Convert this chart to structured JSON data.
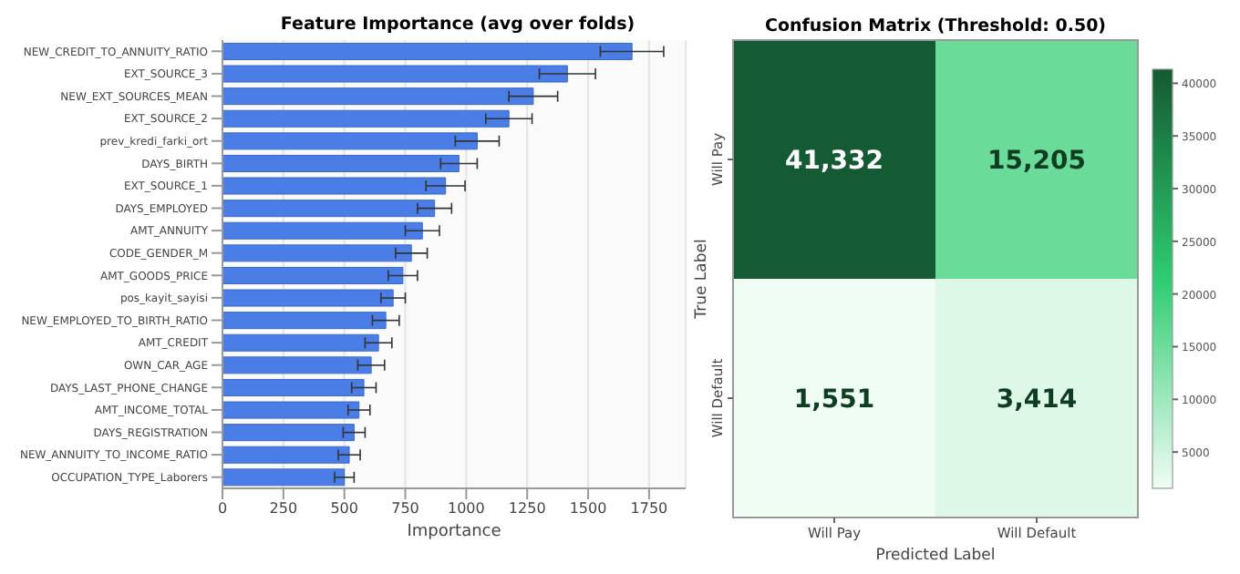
{
  "chart_data": [
    {
      "type": "bar",
      "orientation": "horizontal",
      "title": "Feature Importance (avg over folds)",
      "xlabel": "Importance",
      "categories": [
        "NEW_CREDIT_TO_ANNUITY_RATIO",
        "EXT_SOURCE_3",
        "NEW_EXT_SOURCES_MEAN",
        "EXT_SOURCE_2",
        "prev_kredi_farki_ort",
        "DAYS_BIRTH",
        "EXT_SOURCE_1",
        "DAYS_EMPLOYED",
        "AMT_ANNUITY",
        "CODE_GENDER_M",
        "AMT_GOODS_PRICE",
        "pos_kayit_sayisi",
        "NEW_EMPLOYED_TO_BIRTH_RATIO",
        "AMT_CREDIT",
        "OWN_CAR_AGE",
        "DAYS_LAST_PHONE_CHANGE",
        "AMT_INCOME_TOTAL",
        "DAYS_REGISTRATION",
        "NEW_ANNUITY_TO_INCOME_RATIO",
        "OCCUPATION_TYPE_Laborers"
      ],
      "values": [
        1680,
        1415,
        1275,
        1175,
        1045,
        970,
        915,
        870,
        820,
        775,
        740,
        700,
        670,
        640,
        610,
        580,
        560,
        540,
        520,
        500
      ],
      "errors": [
        130,
        115,
        100,
        95,
        90,
        75,
        80,
        70,
        70,
        65,
        60,
        50,
        55,
        55,
        55,
        50,
        45,
        45,
        45,
        40
      ],
      "color": "#4a7de6",
      "xlim": [
        0,
        1900
      ],
      "xticks": [
        0,
        250,
        500,
        750,
        1000,
        1250,
        1500,
        1750
      ],
      "grid": "x"
    },
    {
      "type": "heatmap",
      "title": "Confusion Matrix (Threshold: 0.50)",
      "xlabel": "Predicted Label",
      "ylabel": "True Label",
      "categories": [
        "Will Pay",
        "Will Default"
      ],
      "y_categories": [
        "Will Pay",
        "Will Default"
      ],
      "cells": [
        [
          41332,
          15205
        ],
        [
          1551,
          3414
        ]
      ],
      "cell_labels": [
        [
          "41,332",
          "15,205"
        ],
        [
          "1,551",
          "3,414"
        ]
      ],
      "clim": [
        1551,
        41332
      ],
      "cticks": [
        5000,
        10000,
        15000,
        20000,
        25000,
        30000,
        35000,
        40000
      ]
    }
  ]
}
